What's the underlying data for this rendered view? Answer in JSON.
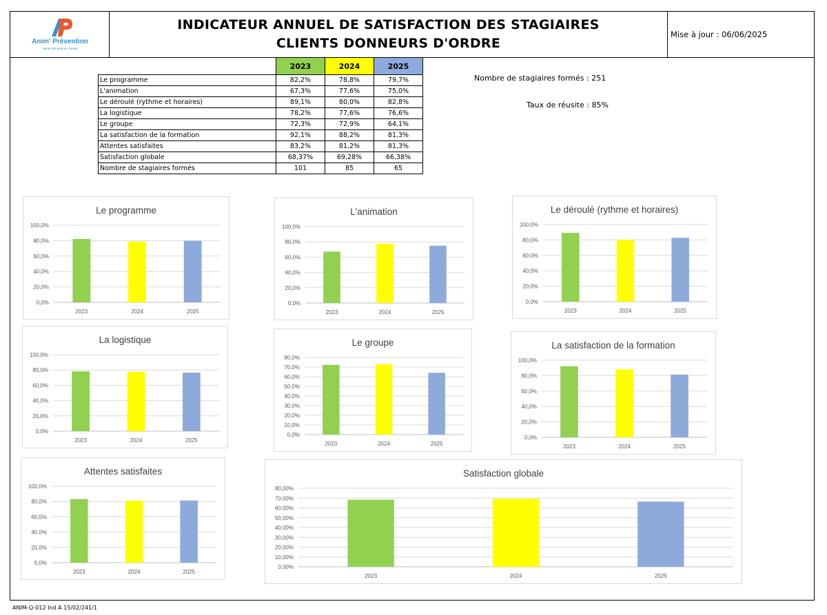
{
  "header": {
    "logo_name": "Anim' Prévention",
    "logo_tagline": "Santé Sécurité au Travail",
    "title_line1": "INDICATEUR ANNUEL DE SATISFACTION DES STAGIAIRES",
    "title_line2": "CLIENTS DONNEURS D'ORDRE",
    "update_text": "Mise à jour : 06/06/2025"
  },
  "colors": {
    "y2023": "#92d050",
    "y2024": "#ffff00",
    "y2025": "#8eaadb"
  },
  "table": {
    "years": [
      "2023",
      "2024",
      "2025"
    ],
    "rows": [
      {
        "label": "Le programme",
        "values": [
          "82,2%",
          "78,8%",
          "79,7%"
        ]
      },
      {
        "label": "L'animation",
        "values": [
          "67,3%",
          "77,6%",
          "75,0%"
        ]
      },
      {
        "label": "Le déroulé (rythme et horaires)",
        "values": [
          "89,1%",
          "80,0%",
          "82,8%"
        ]
      },
      {
        "label": "La logistique",
        "values": [
          "78,2%",
          "77,6%",
          "76,6%"
        ]
      },
      {
        "label": "Le groupe",
        "values": [
          "72,3%",
          "72,9%",
          "64,1%"
        ]
      },
      {
        "label": "La satisfaction de la  formation",
        "values": [
          "92,1%",
          "88,2%",
          "81,3%"
        ]
      },
      {
        "label": "Attentes satisfaites",
        "values": [
          "83,2%",
          "81,2%",
          "81,3%"
        ]
      },
      {
        "label": "Satisfaction globale",
        "values": [
          "68,37%",
          "69,28%",
          "66,38%"
        ]
      },
      {
        "label": "Nombre de stagiaires formés",
        "values": [
          "101",
          "85",
          "65"
        ]
      }
    ]
  },
  "stats": {
    "trained_label": "Nombre de stagiaires formés :",
    "trained_value": "251",
    "success_label": "Taux de réusite :",
    "success_value": "85%"
  },
  "chart_data": [
    {
      "type": "bar",
      "title": "Le programme",
      "categories": [
        "2023",
        "2024",
        "2025"
      ],
      "values": [
        82.2,
        78.8,
        79.7
      ],
      "ylim": [
        0,
        100
      ],
      "ytick_step": 20,
      "tick_decimals": 1,
      "grid": true,
      "legend": "none"
    },
    {
      "type": "bar",
      "title": "L'animation",
      "categories": [
        "2023",
        "2024",
        "2025"
      ],
      "values": [
        67.3,
        77.6,
        75.0
      ],
      "ylim": [
        0,
        100
      ],
      "ytick_step": 20,
      "tick_decimals": 1,
      "grid": true,
      "legend": "none"
    },
    {
      "type": "bar",
      "title": "Le déroulé (rythme et horaires)",
      "categories": [
        "2023",
        "2024",
        "2025"
      ],
      "values": [
        89.1,
        80.0,
        82.8
      ],
      "ylim": [
        0,
        100
      ],
      "ytick_step": 20,
      "tick_decimals": 1,
      "grid": true,
      "legend": "none"
    },
    {
      "type": "bar",
      "title": "La logistique",
      "categories": [
        "2023",
        "2024",
        "2025"
      ],
      "values": [
        78.2,
        77.6,
        76.6
      ],
      "ylim": [
        0,
        100
      ],
      "ytick_step": 20,
      "tick_decimals": 1,
      "grid": true,
      "legend": "none"
    },
    {
      "type": "bar",
      "title": "Le groupe",
      "categories": [
        "2023",
        "2024",
        "2025"
      ],
      "values": [
        72.3,
        72.9,
        64.1
      ],
      "ylim": [
        0,
        80
      ],
      "ytick_step": 10,
      "tick_decimals": 1,
      "grid": true,
      "legend": "none"
    },
    {
      "type": "bar",
      "title": "La satisfaction de la  formation",
      "categories": [
        "2023",
        "2024",
        "2025"
      ],
      "values": [
        92.1,
        88.2,
        81.3
      ],
      "ylim": [
        0,
        100
      ],
      "ytick_step": 20,
      "tick_decimals": 1,
      "grid": true,
      "legend": "none"
    },
    {
      "type": "bar",
      "title": "Attentes satisfaites",
      "categories": [
        "2023",
        "2024",
        "2025"
      ],
      "values": [
        83.2,
        81.2,
        81.3
      ],
      "ylim": [
        0,
        100
      ],
      "ytick_step": 20,
      "tick_decimals": 1,
      "grid": true,
      "legend": "none"
    },
    {
      "type": "bar",
      "title": "Satisfaction globale",
      "categories": [
        "2023",
        "2024",
        "2025"
      ],
      "values": [
        68.37,
        69.28,
        66.38
      ],
      "ylim": [
        0,
        80
      ],
      "ytick_step": 10,
      "tick_decimals": 2,
      "grid": true,
      "legend": "none"
    }
  ],
  "footer": {
    "code": "ANIM-Q-012 Ind A 15/02/241/1"
  }
}
